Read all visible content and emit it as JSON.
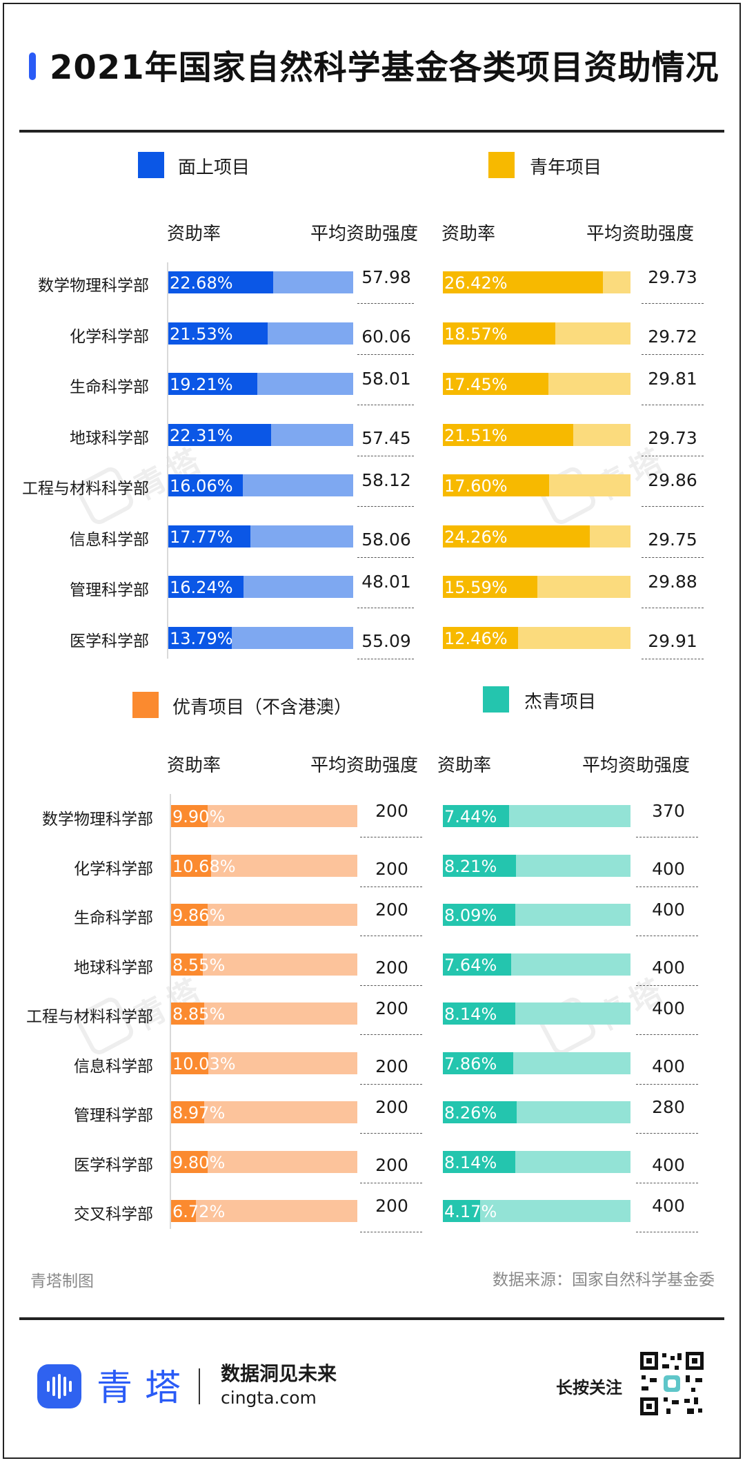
{
  "title": "2021年国家自然科学基金各类项目资助情况",
  "colors": {
    "general_dark": "#0b57e6",
    "general_light": "#7ea8f1",
    "youth_dark": "#f7b900",
    "youth_light": "#fbdb7d",
    "excellent_dark": "#fb8a2f",
    "excellent_light": "#fcc39b",
    "distinguished_dark": "#24c5ae",
    "distinguished_light": "#93e3d6"
  },
  "column_headers": {
    "rate": "资助率",
    "avg": "平均资助强度"
  },
  "chart_data": [
    {
      "type": "bar",
      "title": "面上项目",
      "categories": [
        "数学物理科学部",
        "化学科学部",
        "生命科学部",
        "地球科学部",
        "工程与材料科学部",
        "信息科学部",
        "管理科学部",
        "医学科学部"
      ],
      "series": [
        {
          "name": "资助率",
          "values": [
            22.68,
            21.53,
            19.21,
            22.31,
            16.06,
            17.77,
            16.24,
            13.79
          ],
          "labels": [
            "22.68%",
            "21.53%",
            "19.21%",
            "22.31%",
            "16.06%",
            "17.77%",
            "16.24%",
            "13.79%"
          ]
        },
        {
          "name": "平均资助强度",
          "values": [
            57.98,
            60.06,
            58.01,
            57.45,
            58.12,
            58.06,
            48.01,
            55.09
          ],
          "labels": [
            "57.98",
            "60.06",
            "58.01",
            "57.45",
            "58.12",
            "58.06",
            "48.01",
            "55.09"
          ]
        }
      ]
    },
    {
      "type": "bar",
      "title": "青年项目",
      "categories": [
        "数学物理科学部",
        "化学科学部",
        "生命科学部",
        "地球科学部",
        "工程与材料科学部",
        "信息科学部",
        "管理科学部",
        "医学科学部"
      ],
      "series": [
        {
          "name": "资助率",
          "values": [
            26.42,
            18.57,
            17.45,
            21.51,
            17.6,
            24.26,
            15.59,
            12.46
          ],
          "labels": [
            "26.42%",
            "18.57%",
            "17.45%",
            "21.51%",
            "17.60%",
            "24.26%",
            "15.59%",
            "12.46%"
          ]
        },
        {
          "name": "平均资助强度",
          "values": [
            29.73,
            29.72,
            29.81,
            29.73,
            29.86,
            29.75,
            29.88,
            29.91
          ],
          "labels": [
            "29.73",
            "29.72",
            "29.81",
            "29.73",
            "29.86",
            "29.75",
            "29.88",
            "29.91"
          ]
        }
      ]
    },
    {
      "type": "bar",
      "title": "优青项目（不含港澳）",
      "categories": [
        "数学物理科学部",
        "化学科学部",
        "生命科学部",
        "地球科学部",
        "工程与材料科学部",
        "信息科学部",
        "管理科学部",
        "医学科学部",
        "交叉科学部"
      ],
      "series": [
        {
          "name": "资助率",
          "values": [
            9.9,
            10.68,
            9.86,
            8.55,
            8.85,
            10.03,
            8.97,
            9.8,
            6.72
          ],
          "labels": [
            "9.90%",
            "10.68%",
            "9.86%",
            "8.55%",
            "8.85%",
            "10.03%",
            "8.97%",
            "9.80%",
            "6.72%"
          ]
        },
        {
          "name": "平均资助强度",
          "values": [
            200,
            200,
            200,
            200,
            200,
            200,
            200,
            200,
            200
          ],
          "labels": [
            "200",
            "200",
            "200",
            "200",
            "200",
            "200",
            "200",
            "200",
            "200"
          ]
        }
      ]
    },
    {
      "type": "bar",
      "title": "杰青项目",
      "categories": [
        "数学物理科学部",
        "化学科学部",
        "生命科学部",
        "地球科学部",
        "工程与材料科学部",
        "信息科学部",
        "管理科学部",
        "医学科学部",
        "交叉科学部"
      ],
      "series": [
        {
          "name": "资助率",
          "values": [
            7.44,
            8.21,
            8.09,
            7.64,
            8.14,
            7.86,
            8.26,
            8.14,
            4.17
          ],
          "labels": [
            "7.44%",
            "8.21%",
            "8.09%",
            "7.64%",
            "8.14%",
            "7.86%",
            "8.26%",
            "8.14%",
            "4.17%"
          ]
        },
        {
          "name": "平均资助强度",
          "values": [
            370,
            400,
            400,
            400,
            400,
            400,
            280,
            400,
            400
          ],
          "labels": [
            "370",
            "400",
            "400",
            "400",
            "400",
            "400",
            "280",
            "400",
            "400"
          ]
        }
      ]
    }
  ],
  "footer": {
    "credit": "青塔制图",
    "source": "数据来源：国家自然科学基金委",
    "brand": "青塔",
    "slogan": "数据洞见未来",
    "domain": "cingta.com",
    "follow": "长按关注"
  },
  "watermark": "青塔"
}
